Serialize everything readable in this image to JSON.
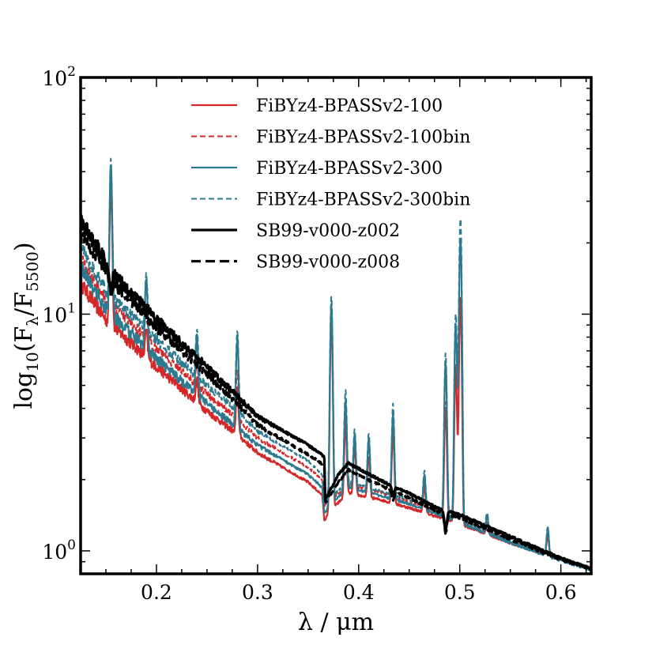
{
  "chart_data": {
    "type": "line",
    "xlabel": "λ / μm",
    "ylabel": "log10(Fλ/F5500)",
    "ylabel_parts": {
      "base": "log",
      "base_sub": "10",
      "open": "(F",
      "lambda": "λ",
      "slash": "/F",
      "sub": "5500",
      "close": ")"
    },
    "xlim": [
      0.125,
      0.63
    ],
    "ylim": [
      0.8,
      100
    ],
    "yscale": "log",
    "x_ticks": [
      {
        "value": 0.2,
        "label": "0.2"
      },
      {
        "value": 0.3,
        "label": "0.3"
      },
      {
        "value": 0.4,
        "label": "0.4"
      },
      {
        "value": 0.5,
        "label": "0.5"
      },
      {
        "value": 0.6,
        "label": "0.6"
      }
    ],
    "y_ticks": [
      {
        "value": 1,
        "base": "10",
        "exp": "0"
      },
      {
        "value": 10,
        "base": "10",
        "exp": "1"
      },
      {
        "value": 100,
        "base": "10",
        "exp": "2"
      }
    ],
    "legend_position": "upper-center",
    "series": [
      {
        "name": "FiBYz4-BPASSv2-100",
        "color": "#d62728",
        "dash": "solid",
        "width": 2.2,
        "continuum": [
          [
            0.125,
            13.5
          ],
          [
            0.15,
            9.5
          ],
          [
            0.2,
            6.0
          ],
          [
            0.25,
            3.9
          ],
          [
            0.28,
            3.1
          ],
          [
            0.3,
            2.6
          ],
          [
            0.35,
            1.95
          ],
          [
            0.364,
            1.72
          ],
          [
            0.366,
            1.35
          ],
          [
            0.38,
            1.6
          ],
          [
            0.39,
            1.75
          ],
          [
            0.42,
            1.65
          ],
          [
            0.45,
            1.52
          ],
          [
            0.5,
            1.3
          ],
          [
            0.55,
            1.08
          ],
          [
            0.6,
            0.92
          ],
          [
            0.63,
            0.84
          ]
        ],
        "lines": [
          [
            0.155,
            4.0
          ],
          [
            0.19,
            1.3
          ],
          [
            0.24,
            1.25
          ],
          [
            0.28,
            1.6
          ],
          [
            0.373,
            6.5
          ],
          [
            0.387,
            2.0
          ],
          [
            0.396,
            1.6
          ],
          [
            0.41,
            1.5
          ],
          [
            0.434,
            2.0
          ],
          [
            0.465,
            1.3
          ],
          [
            0.486,
            3.0
          ],
          [
            0.496,
            4.5
          ],
          [
            0.5007,
            9.0
          ],
          [
            0.527,
            1.1
          ],
          [
            0.587,
            1.2
          ]
        ]
      },
      {
        "name": "FiBYz4-BPASSv2-100bin",
        "color": "#d62728",
        "dash": "dashed",
        "width": 2.0,
        "continuum": [
          [
            0.125,
            17.0
          ],
          [
            0.15,
            11.5
          ],
          [
            0.2,
            7.2
          ],
          [
            0.25,
            4.6
          ],
          [
            0.28,
            3.6
          ],
          [
            0.3,
            3.0
          ],
          [
            0.35,
            2.25
          ],
          [
            0.364,
            2.0
          ],
          [
            0.366,
            1.55
          ],
          [
            0.38,
            1.75
          ],
          [
            0.39,
            1.9
          ],
          [
            0.42,
            1.78
          ],
          [
            0.45,
            1.62
          ],
          [
            0.5,
            1.35
          ],
          [
            0.55,
            1.1
          ],
          [
            0.6,
            0.93
          ],
          [
            0.63,
            0.85
          ]
        ],
        "lines": [
          [
            0.155,
            3.6
          ],
          [
            0.19,
            1.3
          ],
          [
            0.24,
            1.25
          ],
          [
            0.28,
            1.6
          ],
          [
            0.373,
            6.0
          ],
          [
            0.387,
            2.0
          ],
          [
            0.396,
            1.6
          ],
          [
            0.41,
            1.5
          ],
          [
            0.434,
            2.0
          ],
          [
            0.465,
            1.3
          ],
          [
            0.486,
            3.0
          ],
          [
            0.496,
            4.4
          ],
          [
            0.5007,
            9.0
          ],
          [
            0.527,
            1.1
          ],
          [
            0.587,
            1.2
          ]
        ]
      },
      {
        "name": "FiBYz4-BPASSv2-300",
        "color": "#2b7a8f",
        "dash": "solid",
        "width": 2.2,
        "continuum": [
          [
            0.125,
            16.0
          ],
          [
            0.15,
            10.5
          ],
          [
            0.2,
            6.5
          ],
          [
            0.25,
            4.2
          ],
          [
            0.28,
            3.3
          ],
          [
            0.3,
            2.8
          ],
          [
            0.35,
            2.1
          ],
          [
            0.364,
            1.85
          ],
          [
            0.366,
            1.45
          ],
          [
            0.38,
            1.7
          ],
          [
            0.39,
            1.85
          ],
          [
            0.42,
            1.72
          ],
          [
            0.45,
            1.58
          ],
          [
            0.5,
            1.32
          ],
          [
            0.55,
            1.08
          ],
          [
            0.6,
            0.91
          ],
          [
            0.63,
            0.83
          ]
        ],
        "lines": [
          [
            0.155,
            4.2
          ],
          [
            0.19,
            2.0
          ],
          [
            0.24,
            1.8
          ],
          [
            0.28,
            2.4
          ],
          [
            0.373,
            7.0
          ],
          [
            0.387,
            2.4
          ],
          [
            0.396,
            1.7
          ],
          [
            0.41,
            1.7
          ],
          [
            0.434,
            2.3
          ],
          [
            0.465,
            1.4
          ],
          [
            0.486,
            4.5
          ],
          [
            0.496,
            6.8
          ],
          [
            0.5007,
            16.0
          ],
          [
            0.527,
            1.2
          ],
          [
            0.587,
            1.3
          ]
        ]
      },
      {
        "name": "FiBYz4-BPASSv2-300bin",
        "color": "#2b7a8f",
        "dash": "dashed",
        "width": 2.0,
        "continuum": [
          [
            0.125,
            19.5
          ],
          [
            0.15,
            12.5
          ],
          [
            0.2,
            7.8
          ],
          [
            0.25,
            5.0
          ],
          [
            0.28,
            3.9
          ],
          [
            0.3,
            3.2
          ],
          [
            0.35,
            2.4
          ],
          [
            0.364,
            2.1
          ],
          [
            0.366,
            1.6
          ],
          [
            0.38,
            1.8
          ],
          [
            0.39,
            1.95
          ],
          [
            0.42,
            1.8
          ],
          [
            0.45,
            1.65
          ],
          [
            0.5,
            1.36
          ],
          [
            0.55,
            1.1
          ],
          [
            0.6,
            0.93
          ],
          [
            0.63,
            0.85
          ]
        ],
        "lines": [
          [
            0.155,
            3.6
          ],
          [
            0.19,
            1.7
          ],
          [
            0.24,
            1.6
          ],
          [
            0.28,
            2.2
          ],
          [
            0.373,
            7.0
          ],
          [
            0.387,
            2.5
          ],
          [
            0.396,
            1.7
          ],
          [
            0.41,
            1.7
          ],
          [
            0.434,
            2.4
          ],
          [
            0.465,
            1.4
          ],
          [
            0.486,
            4.8
          ],
          [
            0.496,
            7.3
          ],
          [
            0.5007,
            19.0
          ],
          [
            0.527,
            1.2
          ],
          [
            0.587,
            1.3
          ]
        ]
      },
      {
        "name": "SB99-v000-z002",
        "color": "#000000",
        "dash": "solid",
        "width": 3.2,
        "continuum": [
          [
            0.125,
            25.0
          ],
          [
            0.14,
            20.0
          ],
          [
            0.155,
            15.0
          ],
          [
            0.17,
            13.0
          ],
          [
            0.2,
            9.5
          ],
          [
            0.25,
            6.0
          ],
          [
            0.28,
            4.5
          ],
          [
            0.3,
            3.7
          ],
          [
            0.35,
            2.8
          ],
          [
            0.366,
            2.5
          ],
          [
            0.367,
            1.65
          ],
          [
            0.38,
            2.1
          ],
          [
            0.39,
            2.35
          ],
          [
            0.42,
            2.0
          ],
          [
            0.45,
            1.75
          ],
          [
            0.48,
            1.5
          ],
          [
            0.5,
            1.42
          ],
          [
            0.55,
            1.15
          ],
          [
            0.6,
            0.93
          ],
          [
            0.63,
            0.84
          ]
        ],
        "dips": [
          [
            0.155,
            1.2
          ],
          [
            0.486,
            1.2
          ],
          [
            0.434,
            1.1
          ]
        ]
      },
      {
        "name": "SB99-v000-z008",
        "color": "#000000",
        "dash": "dashed",
        "width": 3.2,
        "continuum": [
          [
            0.125,
            22.0
          ],
          [
            0.14,
            18.0
          ],
          [
            0.155,
            14.0
          ],
          [
            0.17,
            12.0
          ],
          [
            0.2,
            8.8
          ],
          [
            0.25,
            5.6
          ],
          [
            0.28,
            4.2
          ],
          [
            0.3,
            3.4
          ],
          [
            0.35,
            2.55
          ],
          [
            0.366,
            2.3
          ],
          [
            0.367,
            1.6
          ],
          [
            0.38,
            1.95
          ],
          [
            0.39,
            2.2
          ],
          [
            0.42,
            1.9
          ],
          [
            0.45,
            1.68
          ],
          [
            0.48,
            1.45
          ],
          [
            0.5,
            1.38
          ],
          [
            0.55,
            1.12
          ],
          [
            0.6,
            0.92
          ],
          [
            0.63,
            0.84
          ]
        ],
        "dips": [
          [
            0.155,
            1.15
          ],
          [
            0.486,
            1.2
          ],
          [
            0.434,
            1.1
          ]
        ]
      }
    ]
  }
}
